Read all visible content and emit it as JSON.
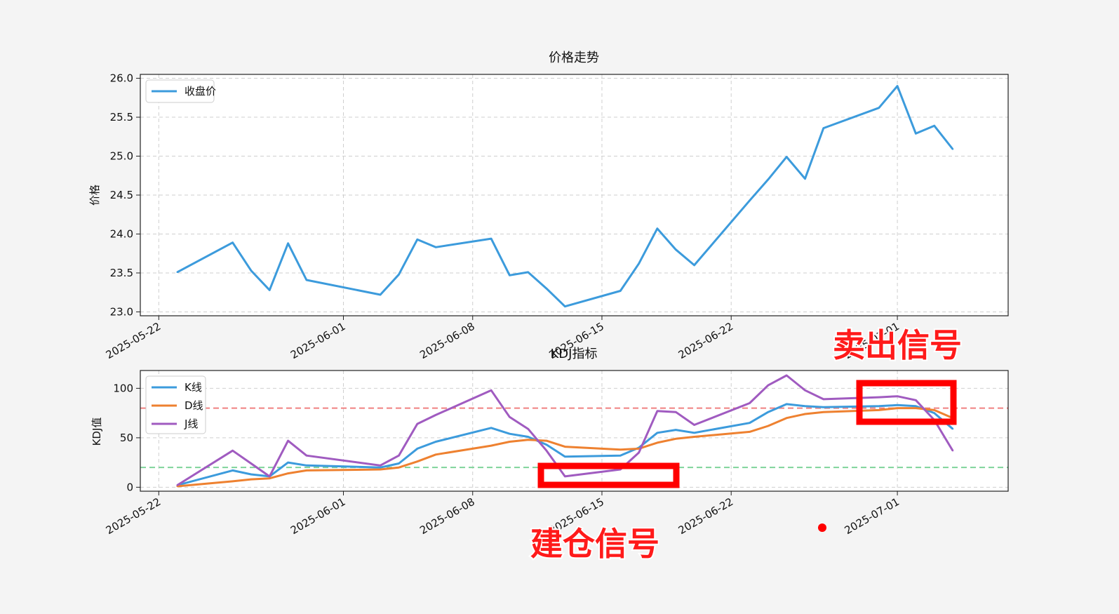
{
  "chart_data": [
    {
      "type": "line",
      "title": "价格走势",
      "xlabel": "",
      "ylabel": "价格",
      "ylim": [
        22.95,
        26.05
      ],
      "xlim": [
        "2025-05-21",
        "2025-07-07"
      ],
      "yticks": [
        "23.0",
        "23.5",
        "24.0",
        "24.5",
        "25.0",
        "25.5",
        "26.0"
      ],
      "xticks": [
        "2025-05-22",
        "2025-06-01",
        "2025-06-08",
        "2025-06-15",
        "2025-06-22",
        "2025-07-01"
      ],
      "grid": true,
      "legend": "top-left",
      "x": [
        "2025-05-23",
        "2025-05-26",
        "2025-05-27",
        "2025-05-28",
        "2025-05-29",
        "2025-05-30",
        "2025-06-03",
        "2025-06-04",
        "2025-06-05",
        "2025-06-06",
        "2025-06-09",
        "2025-06-10",
        "2025-06-11",
        "2025-06-12",
        "2025-06-13",
        "2025-06-16",
        "2025-06-17",
        "2025-06-18",
        "2025-06-19",
        "2025-06-20",
        "2025-06-23",
        "2025-06-24",
        "2025-06-25",
        "2025-06-26",
        "2025-06-27",
        "2025-06-30",
        "2025-07-01",
        "2025-07-02",
        "2025-07-03",
        "2025-07-04"
      ],
      "series": [
        {
          "name": "收盘价",
          "color": "#3c9bdc",
          "values": [
            23.51,
            23.89,
            23.53,
            23.28,
            23.88,
            23.41,
            23.22,
            23.48,
            23.93,
            23.83,
            23.94,
            23.47,
            23.51,
            23.3,
            23.07,
            23.27,
            23.62,
            24.07,
            23.8,
            23.6,
            24.43,
            24.7,
            24.99,
            24.71,
            25.36,
            25.62,
            25.9,
            25.29,
            25.39,
            25.09
          ]
        }
      ]
    },
    {
      "type": "line",
      "title": "KDJ指标",
      "xlabel": "",
      "ylabel": "KDJ值",
      "ylim": [
        -4,
        118
      ],
      "xlim": [
        "2025-05-21",
        "2025-07-07"
      ],
      "yticks": [
        "0",
        "50",
        "100"
      ],
      "xticks": [
        "2025-05-22",
        "2025-06-01",
        "2025-06-08",
        "2025-06-15",
        "2025-06-22",
        "2025-07-01"
      ],
      "grid": true,
      "legend": "top-left",
      "reference_lines": [
        {
          "y": 80,
          "color": "#f08080",
          "style": "dashed"
        },
        {
          "y": 20,
          "color": "#7fd49a",
          "style": "dashed"
        }
      ],
      "x": [
        "2025-05-23",
        "2025-05-26",
        "2025-05-27",
        "2025-05-28",
        "2025-05-29",
        "2025-05-30",
        "2025-06-03",
        "2025-06-04",
        "2025-06-05",
        "2025-06-06",
        "2025-06-09",
        "2025-06-10",
        "2025-06-11",
        "2025-06-12",
        "2025-06-13",
        "2025-06-16",
        "2025-06-17",
        "2025-06-18",
        "2025-06-19",
        "2025-06-20",
        "2025-06-23",
        "2025-06-24",
        "2025-06-25",
        "2025-06-26",
        "2025-06-27",
        "2025-06-30",
        "2025-07-01",
        "2025-07-02",
        "2025-07-03",
        "2025-07-04"
      ],
      "series": [
        {
          "name": "K线",
          "color": "#3c9bdc",
          "values": [
            2,
            17,
            13,
            11,
            25,
            22,
            20,
            24,
            39,
            46,
            60,
            54,
            51,
            43,
            31,
            32,
            40,
            55,
            58,
            55,
            65,
            76,
            84,
            82,
            81,
            82,
            83,
            82,
            75,
            59
          ]
        },
        {
          "name": "D线",
          "color": "#ee8130",
          "values": [
            1,
            6,
            8,
            9,
            14,
            17,
            18,
            20,
            26,
            33,
            42,
            46,
            48,
            47,
            41,
            38,
            39,
            45,
            49,
            51,
            56,
            62,
            70,
            74,
            76,
            78,
            80,
            80,
            78,
            70
          ]
        },
        {
          "name": "J线",
          "color": "#a05bc0",
          "values": [
            2,
            37,
            24,
            11,
            47,
            32,
            22,
            32,
            64,
            73,
            98,
            71,
            59,
            37,
            11,
            18,
            35,
            77,
            76,
            63,
            85,
            103,
            113,
            98,
            89,
            91,
            92,
            88,
            68,
            37
          ]
        }
      ]
    }
  ],
  "annotations": {
    "sell_signal_label": "卖出信号",
    "buy_signal_label": "建仓信号",
    "box_color": "#ff0000"
  }
}
